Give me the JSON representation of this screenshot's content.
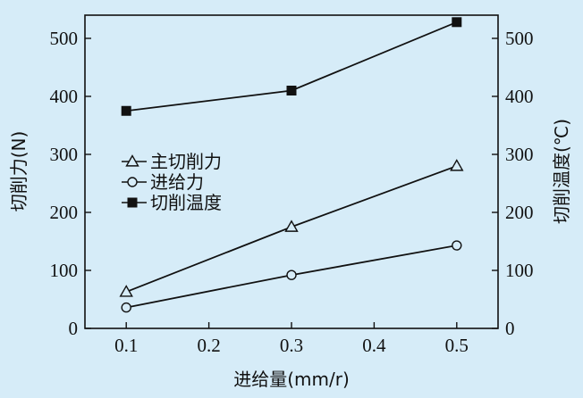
{
  "chart_data": {
    "type": "line",
    "xlabel": "进给量(mm/r)",
    "ylabel_left": "切削力(N)",
    "ylabel_right": "切削温度(℃)",
    "xlim": [
      0.05,
      0.55
    ],
    "ylim_left": [
      0,
      540
    ],
    "ylim_right": [
      0,
      540
    ],
    "x_ticks": [
      "0.1",
      "0.2",
      "0.3",
      "0.4",
      "0.5"
    ],
    "y_ticks_left": [
      "0",
      "100",
      "200",
      "300",
      "400",
      "500"
    ],
    "y_ticks_right": [
      "0",
      "100",
      "200",
      "300",
      "400",
      "500"
    ],
    "x": [
      0.1,
      0.3,
      0.5
    ],
    "series": [
      {
        "name": "主切削力",
        "axis": "left",
        "marker": "triangle-open",
        "values": [
          63,
          175,
          280
        ]
      },
      {
        "name": "进给力",
        "axis": "left",
        "marker": "circle-open",
        "values": [
          36,
          92,
          143
        ]
      },
      {
        "name": "切削温度",
        "axis": "right",
        "marker": "square-filled",
        "values": [
          375,
          410,
          528
        ]
      }
    ],
    "grid": false,
    "legend_position": "center-left",
    "colors": {
      "background": "#d6ecf8",
      "plot_background": "#d6ecf8",
      "line": "#111111"
    }
  }
}
